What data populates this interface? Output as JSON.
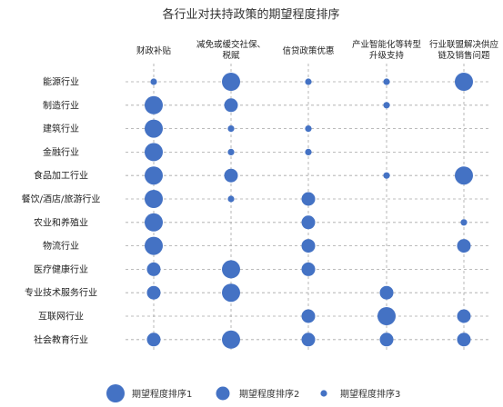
{
  "chart_data": {
    "type": "scatter",
    "title": "各行业对扶持政策的期望程度排序",
    "columns": [
      [
        "财政补贴"
      ],
      [
        "减免或缓交社保、",
        "税赋"
      ],
      [
        "信贷政策优惠"
      ],
      [
        "产业智能化等转型",
        "升级支持"
      ],
      [
        "行业联盟解决供应",
        "链及销售问题"
      ]
    ],
    "rows": [
      "能源行业",
      "制造行业",
      "建筑行业",
      "金融行业",
      "食品加工行业",
      "餐饮/酒店/旅游行业",
      "农业和养殖业",
      "物流行业",
      "医疗健康行业",
      "专业技术服务行业",
      "互联网行业",
      "社会教育行业"
    ],
    "ranks": [
      [
        3,
        1,
        3,
        3,
        1
      ],
      [
        1,
        2,
        0,
        3,
        0
      ],
      [
        1,
        3,
        3,
        0,
        0
      ],
      [
        1,
        3,
        3,
        0,
        0
      ],
      [
        1,
        2,
        0,
        3,
        1
      ],
      [
        1,
        3,
        2,
        0,
        0
      ],
      [
        1,
        0,
        2,
        0,
        3
      ],
      [
        1,
        0,
        2,
        0,
        2
      ],
      [
        2,
        1,
        2,
        0,
        0
      ],
      [
        2,
        1,
        0,
        2,
        0
      ],
      [
        0,
        0,
        2,
        1,
        2
      ],
      [
        2,
        1,
        2,
        2,
        2
      ]
    ],
    "legend": [
      {
        "rank": 1,
        "label": "期望程度排序1"
      },
      {
        "rank": 2,
        "label": "期望程度排序2"
      },
      {
        "rank": 3,
        "label": "期望程度排序3"
      }
    ],
    "colors": {
      "dot": "#4472C4",
      "grid": "#A6A6A6"
    },
    "grid": "dashed"
  }
}
